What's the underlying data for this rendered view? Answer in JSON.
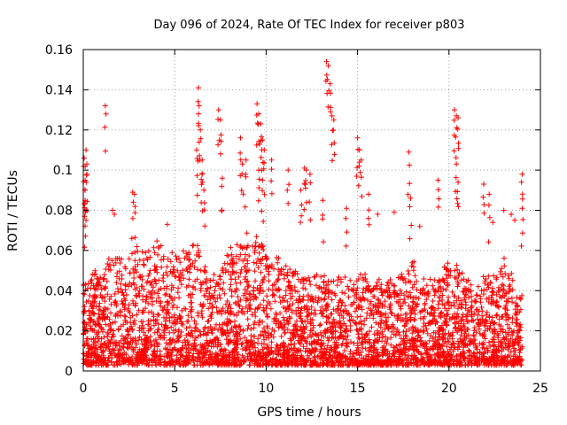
{
  "chart_data": {
    "type": "scatter",
    "title": "Day 096 of 2024, Rate Of TEC Index for receiver p803",
    "xlabel": "GPS time / hours",
    "ylabel": "ROTI / TECUs",
    "xlim": [
      0,
      25
    ],
    "ylim": [
      0,
      0.16
    ],
    "x_ticks": [
      0,
      5,
      10,
      15,
      20,
      25
    ],
    "x_tick_labels": [
      "0",
      "5",
      "10",
      "15",
      "20",
      "25"
    ],
    "y_ticks": [
      0,
      0.02,
      0.04,
      0.06,
      0.08,
      0.1,
      0.12,
      0.14,
      0.16
    ],
    "y_tick_labels": [
      "0",
      "0.02",
      "0.04",
      "0.06",
      "0.08",
      "0.1",
      "0.12",
      "0.14",
      "0.16"
    ],
    "grid": true,
    "marker": "+",
    "color": "#ff0000",
    "envelope": {
      "description": "approximate upper envelope of dense cloud (hours, ROTI)",
      "x": [
        0,
        0.5,
        1,
        1.5,
        2,
        2.5,
        3,
        3.5,
        4,
        4.5,
        5,
        5.5,
        6,
        6.3,
        6.6,
        7,
        7.5,
        8,
        8.5,
        9,
        9.5,
        10,
        10.5,
        11,
        11.5,
        12,
        12.5,
        13,
        13.5,
        14,
        14.5,
        15,
        15.5,
        16,
        16.5,
        17,
        17.5,
        18,
        18.5,
        19,
        19.5,
        20,
        20.5,
        21,
        21.5,
        22,
        22.5,
        23,
        23.5,
        24
      ],
      "y": [
        0.045,
        0.05,
        0.048,
        0.06,
        0.055,
        0.058,
        0.062,
        0.06,
        0.065,
        0.06,
        0.058,
        0.06,
        0.062,
        0.065,
        0.055,
        0.045,
        0.05,
        0.06,
        0.065,
        0.07,
        0.068,
        0.06,
        0.058,
        0.055,
        0.05,
        0.048,
        0.047,
        0.05,
        0.045,
        0.047,
        0.048,
        0.05,
        0.046,
        0.047,
        0.045,
        0.048,
        0.05,
        0.055,
        0.05,
        0.046,
        0.047,
        0.055,
        0.05,
        0.048,
        0.045,
        0.05,
        0.046,
        0.055,
        0.045,
        0.04
      ]
    },
    "outliers": {
      "x": [
        0.05,
        0.1,
        0.1,
        0.15,
        0.1,
        0.2,
        0.15,
        1.2,
        1.6,
        1.7,
        2.7,
        2.8,
        4.6,
        6.2,
        6.3,
        6.3,
        6.4,
        6.5,
        6.5,
        6.6,
        7.4,
        7.5,
        7.6,
        8.6,
        8.7,
        8.9,
        9.5,
        9.6,
        9.7,
        9.8,
        9.9,
        9.6,
        9.8,
        10.3,
        11.2,
        11.9,
        12.1,
        12.2,
        12.4,
        13.1,
        13.3,
        13.4,
        13.5,
        13.6,
        13.7,
        14.4,
        15.0,
        15.1,
        15.2,
        15.6,
        16.1,
        17.0,
        17.8,
        17.9,
        18.4,
        19.4,
        20.3,
        20.4,
        20.5,
        20.4,
        20.5,
        21.9,
        22.2,
        22.4,
        23.0,
        23.4,
        23.6,
        24.0,
        24.0
      ],
      "y": [
        0.106,
        0.085,
        0.09,
        0.11,
        0.095,
        0.098,
        0.075,
        0.132,
        0.08,
        0.078,
        0.089,
        0.088,
        0.073,
        0.11,
        0.141,
        0.128,
        0.12,
        0.105,
        0.098,
        0.09,
        0.13,
        0.125,
        0.096,
        0.116,
        0.103,
        0.105,
        0.133,
        0.128,
        0.123,
        0.115,
        0.11,
        0.1,
        0.095,
        0.105,
        0.1,
        0.09,
        0.101,
        0.1,
        0.098,
        0.085,
        0.154,
        0.152,
        0.143,
        0.127,
        0.125,
        0.081,
        0.116,
        0.11,
        0.105,
        0.088,
        0.078,
        0.079,
        0.109,
        0.086,
        0.072,
        0.095,
        0.13,
        0.127,
        0.126,
        0.103,
        0.094,
        0.093,
        0.088,
        0.074,
        0.08,
        0.078,
        0.075,
        0.098,
        0.081
      ]
    },
    "baseline_floor": 0.003
  }
}
